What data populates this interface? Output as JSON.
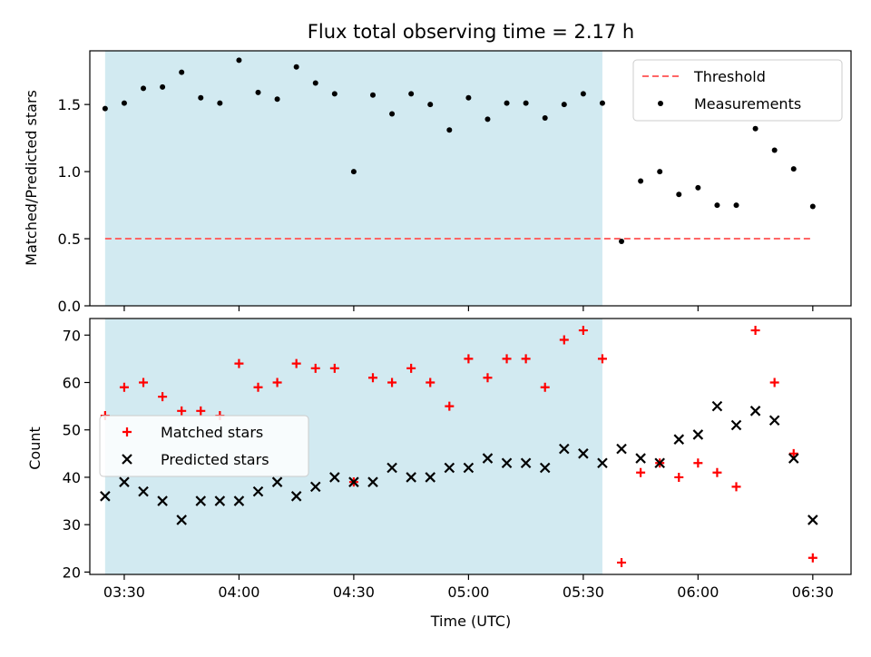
{
  "chart_data": [
    {
      "type": "scatter",
      "title": "Flux total observing time = 2.17 h",
      "xlabel": "",
      "ylabel": "Matched/Predicted stars",
      "xlim": [
        "03:21",
        "06:40"
      ],
      "ylim": [
        0,
        1.9
      ],
      "y_ticks": [
        "0.0",
        "0.5",
        "1.0",
        "1.5"
      ],
      "x_ticks": [
        "03:30",
        "04:00",
        "04:30",
        "05:00",
        "05:30",
        "06:00",
        "06:30"
      ],
      "grid": false,
      "legend_position": "top-right",
      "shaded_interval": {
        "from": "03:25",
        "to": "05:35",
        "color": "#add8e6"
      },
      "series": [
        {
          "name": "Threshold",
          "style": "dashed-line",
          "color": "#ff6666",
          "x": [
            "03:25",
            "06:30"
          ],
          "y": [
            0.5,
            0.5
          ]
        },
        {
          "name": "Measurements",
          "style": "dot",
          "color": "#000000",
          "x": [
            "03:25",
            "03:30",
            "03:35",
            "03:40",
            "03:45",
            "03:50",
            "03:55",
            "04:00",
            "04:05",
            "04:10",
            "04:15",
            "04:20",
            "04:25",
            "04:30",
            "04:35",
            "04:40",
            "04:45",
            "04:50",
            "04:55",
            "05:00",
            "05:05",
            "05:10",
            "05:15",
            "05:20",
            "05:25",
            "05:30",
            "05:35",
            "05:40",
            "05:45",
            "05:50",
            "05:55",
            "06:00",
            "06:05",
            "06:10",
            "06:15",
            "06:20",
            "06:25",
            "06:30"
          ],
          "y": [
            1.47,
            1.51,
            1.62,
            1.63,
            1.74,
            1.55,
            1.51,
            1.83,
            1.59,
            1.54,
            1.78,
            1.66,
            1.58,
            1.0,
            1.57,
            1.43,
            1.58,
            1.5,
            1.31,
            1.55,
            1.39,
            1.51,
            1.51,
            1.4,
            1.5,
            1.58,
            1.51,
            0.48,
            0.93,
            1.0,
            0.83,
            0.88,
            0.75,
            0.75,
            1.32,
            1.16,
            1.02,
            0.74
          ]
        }
      ]
    },
    {
      "type": "scatter",
      "title": "",
      "xlabel": "Time (UTC)",
      "ylabel": "Count",
      "xlim": [
        "03:21",
        "06:40"
      ],
      "ylim": [
        19.5,
        73.5
      ],
      "y_ticks": [
        "20",
        "30",
        "40",
        "50",
        "60",
        "70"
      ],
      "x_ticks": [
        "03:30",
        "04:00",
        "04:30",
        "05:00",
        "05:30",
        "06:00",
        "06:30"
      ],
      "grid": false,
      "legend_position": "center-left",
      "shaded_interval": {
        "from": "03:25",
        "to": "05:35",
        "color": "#add8e6"
      },
      "series": [
        {
          "name": "Matched stars",
          "marker": "plus",
          "color": "#ff0000",
          "x": [
            "03:25",
            "03:30",
            "03:35",
            "03:40",
            "03:45",
            "03:50",
            "03:55",
            "04:00",
            "04:05",
            "04:10",
            "04:15",
            "04:20",
            "04:25",
            "04:30",
            "04:35",
            "04:40",
            "04:45",
            "04:50",
            "04:55",
            "05:00",
            "05:05",
            "05:10",
            "05:15",
            "05:20",
            "05:25",
            "05:30",
            "05:35",
            "05:40",
            "05:45",
            "05:50",
            "05:55",
            "06:00",
            "06:05",
            "06:10",
            "06:15",
            "06:20",
            "06:25",
            "06:30"
          ],
          "y": [
            53,
            59,
            60,
            57,
            54,
            54,
            53,
            64,
            59,
            60,
            64,
            63,
            63,
            39,
            61,
            60,
            63,
            60,
            55,
            65,
            61,
            65,
            65,
            59,
            69,
            71,
            65,
            22,
            41,
            43,
            40,
            43,
            41,
            38,
            71,
            60,
            45,
            23
          ]
        },
        {
          "name": "Predicted stars",
          "marker": "x",
          "color": "#000000",
          "x": [
            "03:25",
            "03:30",
            "03:35",
            "03:40",
            "03:45",
            "03:50",
            "03:55",
            "04:00",
            "04:05",
            "04:10",
            "04:15",
            "04:20",
            "04:25",
            "04:30",
            "04:35",
            "04:40",
            "04:45",
            "04:50",
            "04:55",
            "05:00",
            "05:05",
            "05:10",
            "05:15",
            "05:20",
            "05:25",
            "05:30",
            "05:35",
            "05:40",
            "05:45",
            "05:50",
            "05:55",
            "06:00",
            "06:05",
            "06:10",
            "06:15",
            "06:20",
            "06:25",
            "06:30"
          ],
          "y": [
            36,
            39,
            37,
            35,
            31,
            35,
            35,
            35,
            37,
            39,
            36,
            38,
            40,
            39,
            39,
            42,
            40,
            40,
            42,
            42,
            44,
            43,
            43,
            42,
            46,
            45,
            43,
            46,
            44,
            43,
            48,
            49,
            55,
            51,
            54,
            52,
            44,
            31
          ]
        }
      ]
    }
  ]
}
